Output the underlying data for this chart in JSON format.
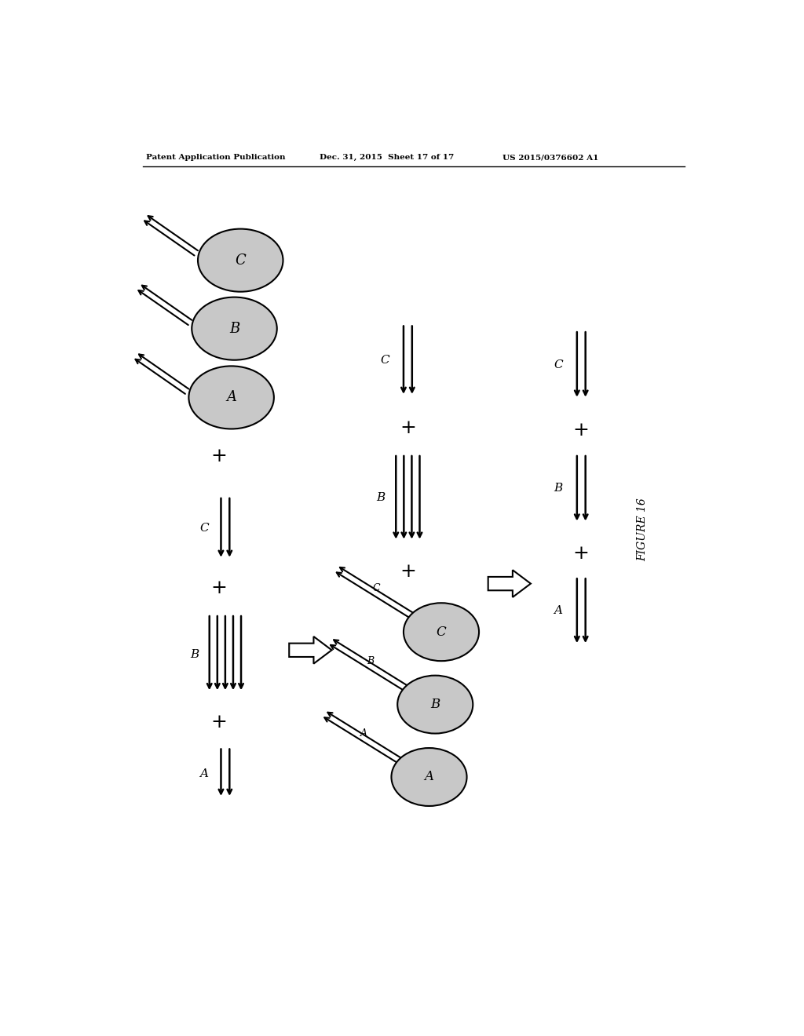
{
  "bg_color": "#ffffff",
  "bead_color": "#c8c8c8",
  "bead_edge_color": "#000000",
  "line_color": "#000000",
  "header_left": "Patent Application Publication",
  "header_mid": "Dec. 31, 2015  Sheet 17 of 17",
  "header_right": "US 2015/0376602 A1",
  "figure_label": "FIGURE 16"
}
